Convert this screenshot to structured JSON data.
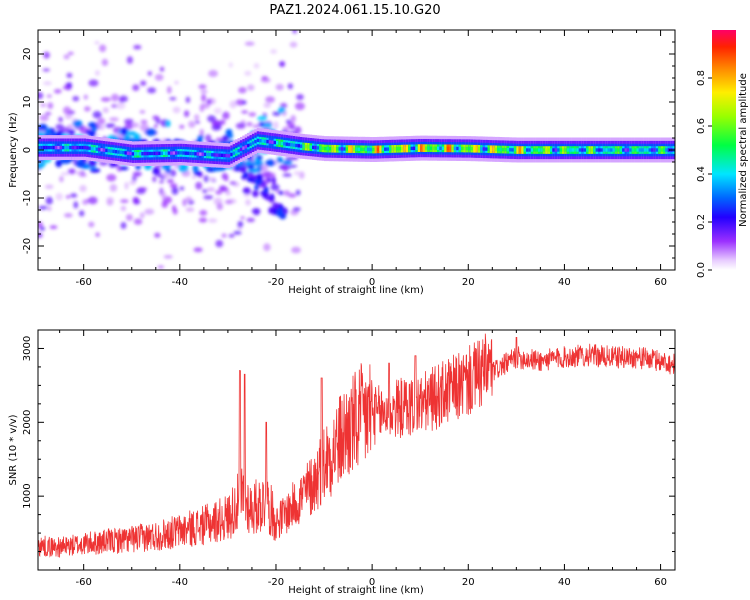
{
  "figure": {
    "title": "PAZ1.2024.061.15.10.G20"
  },
  "chart_data": [
    {
      "type": "heatmap",
      "xlabel": "Height of straight line (km)",
      "ylabel": "Frequency (Hz)",
      "xlim": [
        -69.5,
        63.0
      ],
      "ylim": [
        -25,
        25
      ],
      "xticks": [
        -60,
        -40,
        -20,
        0,
        20,
        40,
        60
      ],
      "yticks": [
        -20,
        -10,
        0,
        10,
        20
      ],
      "colorbar": {
        "label": "Normalized spectral amplitude",
        "range": [
          0.0,
          1.0
        ],
        "ticks": [
          0.0,
          0.2,
          0.4,
          0.6,
          0.8
        ],
        "tick_labels": [
          "0.0",
          "0.2",
          "0.4",
          "0.6",
          "0.8"
        ],
        "colormap": "gist_rainbow_r"
      },
      "ridge": {
        "description_values": "central spectral line frequency vs height",
        "x": [
          -68,
          -60,
          -50,
          -40,
          -30,
          -24,
          -20,
          -15,
          -10,
          0,
          10,
          20,
          30,
          40,
          50,
          63
        ],
        "y": [
          0.5,
          0.5,
          -0.8,
          -0.6,
          -1.2,
          2.0,
          1.5,
          0.8,
          0.3,
          0.1,
          0.4,
          0.3,
          0.0,
          0.0,
          0.0,
          0.0
        ],
        "peak_amplitude": [
          0.35,
          0.4,
          0.45,
          0.4,
          0.35,
          0.45,
          0.5,
          0.6,
          0.8,
          0.9,
          0.95,
          0.9,
          0.85,
          0.7,
          0.6,
          0.55
        ]
      }
    },
    {
      "type": "line",
      "xlabel": "Height of straight line (km)",
      "ylabel": "SNR (10 * v/v)",
      "xlim": [
        -69.5,
        63.0
      ],
      "ylim": [
        0,
        3250
      ],
      "xticks": [
        -60,
        -40,
        -20,
        0,
        20,
        40,
        60
      ],
      "yticks": [
        1000,
        2000,
        3000
      ],
      "color": "#ee3333",
      "series": [
        {
          "x": [
            -69.5,
            -65,
            -60,
            -55,
            -50,
            -45,
            -40,
            -35,
            -30,
            -27,
            -25,
            -22,
            -20,
            -18,
            -15,
            -12,
            -10,
            -5,
            0,
            5,
            10,
            15,
            20,
            25,
            30,
            35,
            40,
            45,
            50,
            55,
            60,
            63
          ],
          "values": [
            300,
            280,
            320,
            350,
            380,
            420,
            480,
            550,
            650,
            900,
            750,
            850,
            600,
            700,
            900,
            1100,
            1350,
            1750,
            2000,
            2100,
            2150,
            2300,
            2450,
            2650,
            2850,
            2800,
            2850,
            2880,
            2850,
            2850,
            2800,
            2750
          ]
        }
      ],
      "spikes": [
        {
          "x": -27.5,
          "y": 2700
        },
        {
          "x": -26.5,
          "y": 2650
        },
        {
          "x": -22,
          "y": 2000
        },
        {
          "x": -10.5,
          "y": 2600
        },
        {
          "x": 3.5,
          "y": 2800
        },
        {
          "x": 9,
          "y": 2900
        },
        {
          "x": 30,
          "y": 3150
        }
      ]
    }
  ]
}
